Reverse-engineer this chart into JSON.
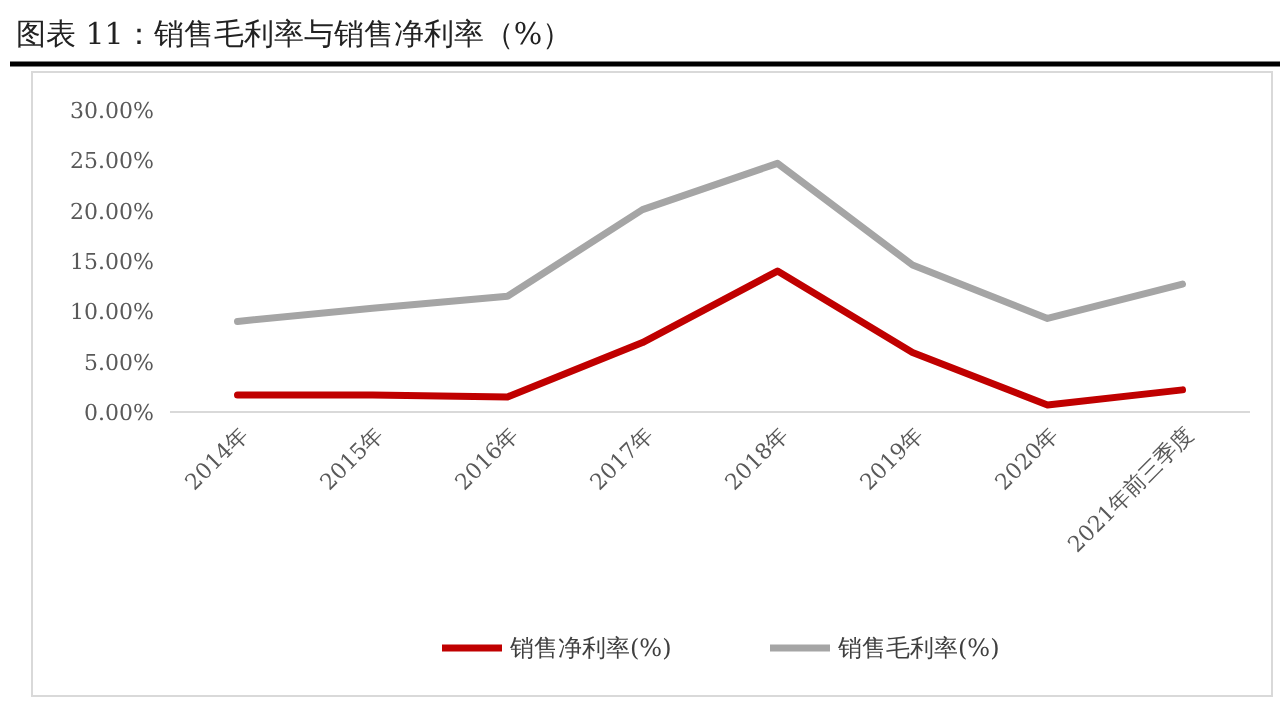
{
  "chart_data": {
    "type": "line",
    "title": "图表 11：销售毛利率与销售净利率（%）",
    "categories": [
      "2014年",
      "2015年",
      "2016年",
      "2017年",
      "2018年",
      "2019年",
      "2020年",
      "2021年前三季度"
    ],
    "series": [
      {
        "name": "销售净利率(%)",
        "color": "#c00000",
        "values": [
          1.7,
          1.7,
          1.5,
          6.9,
          14.0,
          5.9,
          0.7,
          2.2
        ]
      },
      {
        "name": "销售毛利率(%)",
        "color": "#a5a5a5",
        "values": [
          9.0,
          10.3,
          11.5,
          20.1,
          24.7,
          14.6,
          9.3,
          12.7
        ]
      }
    ],
    "ylim": [
      0,
      30
    ],
    "yticks": [
      {
        "value": 0,
        "label": "0.00%"
      },
      {
        "value": 5,
        "label": "5.00%"
      },
      {
        "value": 10,
        "label": "10.00%"
      },
      {
        "value": 15,
        "label": "15.00%"
      },
      {
        "value": 20,
        "label": "20.00%"
      },
      {
        "value": 25,
        "label": "25.00%"
      },
      {
        "value": 30,
        "label": "30.00%"
      }
    ],
    "grid": false,
    "legend": "bottom",
    "marker": "none",
    "line_style": "solid"
  }
}
